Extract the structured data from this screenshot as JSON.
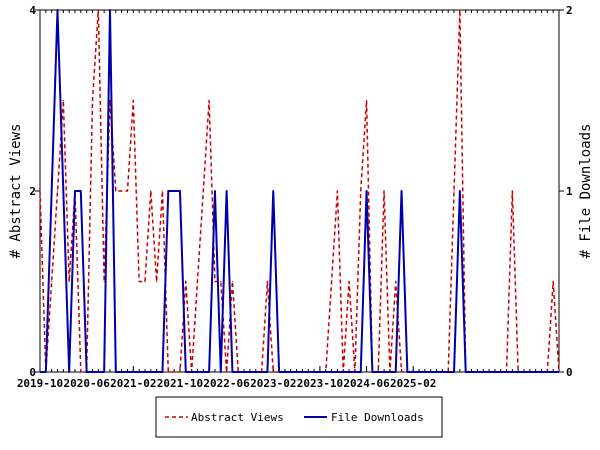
{
  "chart_data": {
    "type": "line",
    "x_tick_labels": [
      "2019-10",
      "2020-06",
      "2021-02",
      "2021-10",
      "2022-06",
      "2023-02",
      "2023-10",
      "2024-06",
      "2025-02"
    ],
    "y_left": {
      "label": "# Abstract Views",
      "ticks": [
        "0",
        "2",
        "4"
      ],
      "ylim": [
        0,
        4
      ]
    },
    "y_right": {
      "label": "# File Downloads",
      "ticks": [
        "0",
        "1",
        "2"
      ],
      "ylim": [
        0,
        2
      ]
    },
    "series": [
      {
        "name": "Abstract Views",
        "axis": "left",
        "color": "#cc0000",
        "style": "dashed",
        "values": [
          2,
          0,
          1,
          2,
          3,
          1,
          2,
          0,
          0,
          3,
          4,
          1,
          3,
          2,
          2,
          2,
          3,
          1,
          1,
          2,
          1,
          2,
          0,
          0,
          0,
          1,
          0,
          1,
          2,
          3,
          1,
          1,
          0,
          1,
          0,
          0,
          0,
          0,
          0,
          1,
          0,
          0,
          0,
          0,
          0,
          0,
          0,
          0,
          0,
          0,
          1,
          2,
          0,
          1,
          0,
          2,
          3,
          0,
          0,
          2,
          0,
          1,
          0,
          0,
          0,
          0,
          0,
          0,
          0,
          0,
          0,
          2,
          4,
          0,
          0,
          0,
          0,
          0,
          0,
          0,
          0,
          2,
          0,
          0,
          0,
          0,
          0,
          0,
          1,
          0
        ]
      },
      {
        "name": "File Downloads",
        "axis": "right",
        "color": "#0000aa",
        "style": "solid",
        "values": [
          0,
          0,
          1,
          2,
          1,
          0,
          1,
          1,
          0,
          0,
          0,
          0,
          2,
          0,
          0,
          0,
          0,
          0,
          0,
          0,
          0,
          0,
          1,
          1,
          1,
          0,
          0,
          0,
          0,
          0,
          1,
          0,
          1,
          0,
          0,
          0,
          0,
          0,
          0,
          0,
          1,
          0,
          0,
          0,
          0,
          0,
          0,
          0,
          0,
          0,
          0,
          0,
          0,
          0,
          0,
          0,
          1,
          0,
          0,
          0,
          0,
          0,
          1,
          0,
          0,
          0,
          0,
          0,
          0,
          0,
          0,
          0,
          1,
          0,
          0,
          0,
          0,
          0,
          0,
          0,
          0,
          0,
          0,
          0,
          0,
          0,
          0,
          0,
          0,
          0
        ]
      }
    ],
    "grid": false,
    "legend": "bottom"
  }
}
